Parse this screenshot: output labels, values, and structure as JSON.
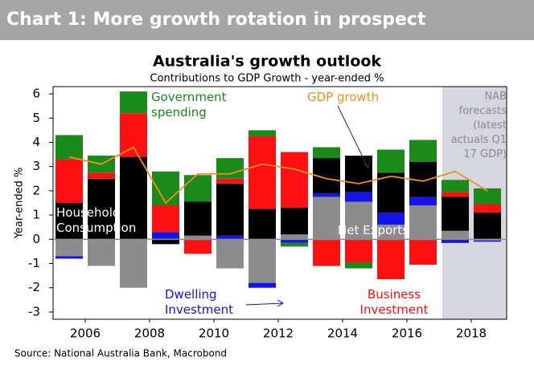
{
  "header": "Chart 1: More growth rotation in prospect",
  "source": "Source: National Australia Bank, Macrobond",
  "chart_data": {
    "type": "stacked-bar-line",
    "title": "Australia's growth outlook",
    "subtitle": "Contributions to GDP Growth - year-ended %",
    "y_label": "Year-ended %",
    "forecast_note": "NAB forecasts (latest actuals Q1 17 GDP)",
    "forecast_start": 2017,
    "x": [
      2005.5,
      2006.5,
      2007.5,
      2008.5,
      2009.5,
      2010.5,
      2011.5,
      2012.5,
      2013.5,
      2014.5,
      2015.5,
      2016.5,
      2017.5,
      2018.5
    ],
    "xlim": [
      2005,
      2019
    ],
    "xticks": [
      2006,
      2008,
      2010,
      2012,
      2014,
      2016,
      2018
    ],
    "ylim": [
      -3.3,
      6.3
    ],
    "yticks": [
      -3,
      -2,
      -1,
      0,
      1,
      2,
      3,
      4,
      5,
      6
    ],
    "series": [
      {
        "name": "Net Exports",
        "color": "#8c8c8c",
        "values": [
          -0.7,
          -1.1,
          -2.0,
          0,
          0.15,
          -1.2,
          -1.8,
          0.2,
          1.75,
          1.55,
          0.6,
          1.4,
          0.35,
          -0.05
        ]
      },
      {
        "name": "Dwelling Investment",
        "color": "#1414e6",
        "values": [
          -0.1,
          0,
          0,
          0.3,
          0,
          0.15,
          -0.2,
          -0.15,
          0.15,
          0.4,
          0.5,
          0.35,
          -0.15,
          -0.05
        ]
      },
      {
        "name": "Household Consumption",
        "color": "#000000",
        "values": [
          1.5,
          2.5,
          3.4,
          -0.2,
          1.4,
          2.15,
          1.25,
          1.1,
          1.45,
          1.5,
          1.65,
          1.45,
          1.4,
          1.1
        ]
      },
      {
        "name": "Business Investment",
        "color": "#ff1010",
        "values": [
          1.8,
          0.25,
          1.8,
          1.1,
          -0.6,
          0.2,
          3.0,
          2.3,
          -1.1,
          -0.95,
          -1.65,
          -1.05,
          0.2,
          0.35
        ]
      },
      {
        "name": "Government spending",
        "color": "#1a8a1a",
        "values": [
          1.0,
          0.7,
          0.9,
          1.4,
          1.1,
          0.85,
          0.25,
          -0.15,
          0.45,
          -0.25,
          0.95,
          0.9,
          0.5,
          0.65
        ]
      },
      {
        "name": "GDP growth",
        "color": "#f0901e",
        "type": "line",
        "values": [
          3.4,
          3.1,
          3.8,
          1.5,
          2.7,
          2.7,
          3.1,
          2.9,
          2.5,
          2.3,
          2.6,
          2.4,
          2.8,
          2.0
        ]
      }
    ]
  }
}
